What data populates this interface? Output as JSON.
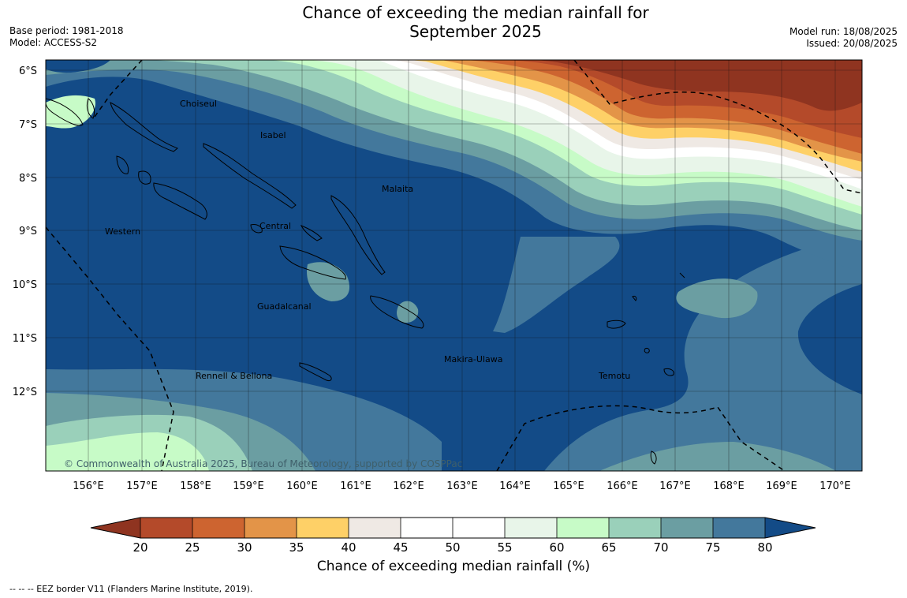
{
  "header": {
    "title_line1": "Chance of exceeding the median rainfall for",
    "title_line2": "September 2025",
    "base_period": "Base period: 1981-2018",
    "model": "Model: ACCESS-S2",
    "model_run": "Model run: 18/08/2025",
    "issued": "Issued: 20/08/2025"
  },
  "map": {
    "lat_labels": [
      "6°S",
      "7°S",
      "8°S",
      "9°S",
      "10°S",
      "11°S",
      "12°S"
    ],
    "lon_labels": [
      "156°E",
      "157°E",
      "158°E",
      "159°E",
      "160°E",
      "161°E",
      "162°E",
      "163°E",
      "164°E",
      "165°E",
      "166°E",
      "167°E",
      "168°E",
      "169°E",
      "170°E"
    ],
    "province_labels": [
      "Choiseul",
      "Isabel",
      "Malaita",
      "Western",
      "Central",
      "Guadalcanal",
      "Makira-Ulawa",
      "Rennell & Bellona",
      "Temotu"
    ],
    "copyright": "© Commonwealth of Australia 2025, Bureau of Meteorology, supported by COSPPac"
  },
  "colorbar": {
    "ticks": [
      "20",
      "25",
      "30",
      "35",
      "40",
      "45",
      "50",
      "55",
      "60",
      "65",
      "70",
      "75",
      "80"
    ],
    "colors": [
      "#8f3420",
      "#b44a2a",
      "#cd6430",
      "#e39448",
      "#fed067",
      "#efe9e4",
      "#ffffff",
      "#ffffff",
      "#e8f5e9",
      "#c7fbc7",
      "#9ad0ba",
      "#6b9ea2",
      "#43789c",
      "#134b87"
    ],
    "label": "Chance of exceeding median rainfall (%)"
  },
  "legend": {
    "eez": "--  --  -- EEZ border V11 (Flanders Marine Institute, 2019)."
  }
}
